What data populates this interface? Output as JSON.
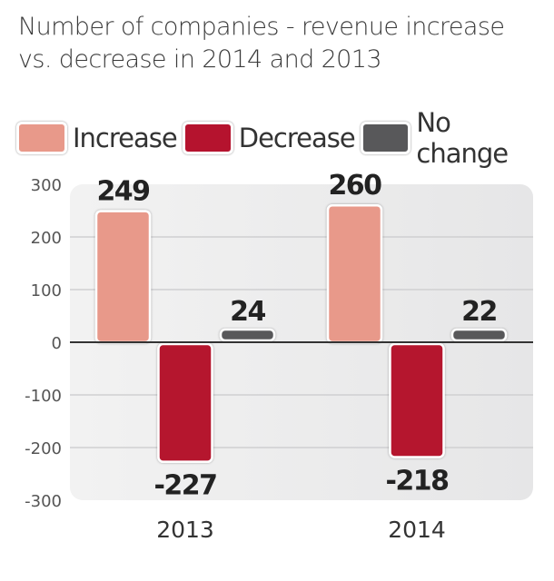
{
  "chart_data": {
    "type": "bar",
    "title": [
      "Number of companies - revenue increase",
      "vs. decrease in 2014 and 2013"
    ],
    "categories": [
      "2013",
      "2014"
    ],
    "series": [
      {
        "name": "Increase",
        "color": "#e8998a",
        "values": [
          249,
          260
        ]
      },
      {
        "name": "Decrease",
        "color": "#b5132e",
        "values": [
          -227,
          -218
        ]
      },
      {
        "name": "No change",
        "color": "#58585a",
        "values": [
          24,
          22
        ]
      }
    ],
    "ylim": [
      -300,
      300
    ],
    "yticks": [
      300,
      200,
      100,
      0,
      -100,
      -200,
      -300
    ],
    "xlabel": "",
    "ylabel": "",
    "grid": true,
    "legend": "top"
  }
}
